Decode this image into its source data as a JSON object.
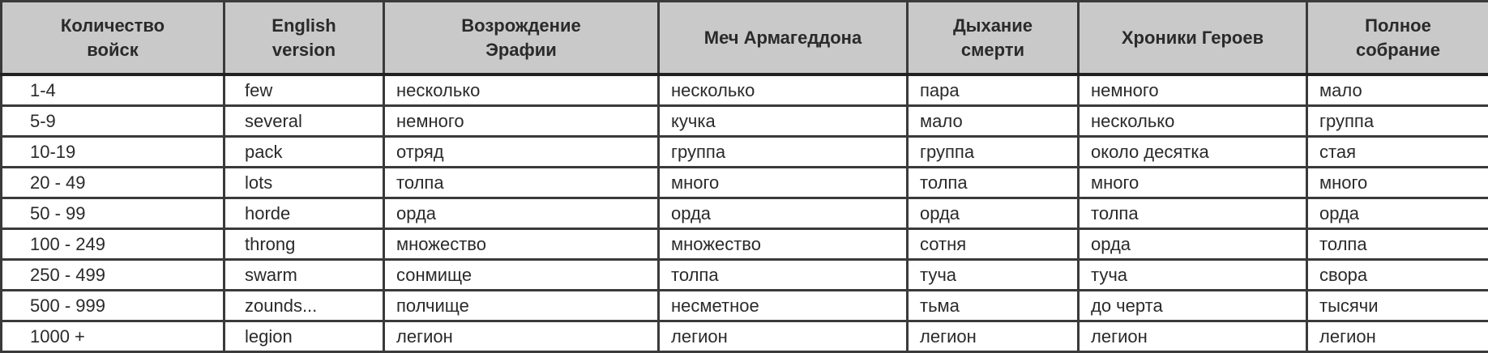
{
  "headers": [
    "Количество\nвойск",
    "English\nversion",
    "Возрождение\nЭрафии",
    "Меч Армагеддона",
    "Дыхание\nсмерти",
    "Хроники Героев",
    "Полное\nсобрание"
  ],
  "header_lines": [
    [
      "Количество",
      "войск"
    ],
    [
      "English",
      "version"
    ],
    [
      "Возрождение",
      "Эрафии"
    ],
    [
      "Меч Армагеддона"
    ],
    [
      "Дыхание",
      "смерти"
    ],
    [
      "Хроники Героев"
    ],
    [
      "Полное",
      "собрание"
    ]
  ],
  "rows": [
    [
      "1-4",
      "few",
      "несколько",
      "несколько",
      "пара",
      "немного",
      "мало"
    ],
    [
      "5-9",
      "several",
      "немного",
      "кучка",
      "мало",
      "несколько",
      "группа"
    ],
    [
      "10-19",
      "pack",
      "отряд",
      "группа",
      "группа",
      "около десятка",
      "стая"
    ],
    [
      "20 - 49",
      "lots",
      "толпа",
      "много",
      "толпа",
      "много",
      "много"
    ],
    [
      "50 - 99",
      "horde",
      "орда",
      "орда",
      "орда",
      "толпа",
      "орда"
    ],
    [
      "100 - 249",
      "throng",
      "множество",
      "множество",
      "сотня",
      "орда",
      "толпа"
    ],
    [
      "250 - 499",
      "swarm",
      "сонмище",
      "толпа",
      "туча",
      "туча",
      "свора"
    ],
    [
      "500 - 999",
      "zounds...",
      "полчище",
      "несметное",
      "тьма",
      "до черта",
      "тысячи"
    ],
    [
      "1000 +",
      "legion",
      "легион",
      "легион",
      "легион",
      "легион",
      "легион"
    ]
  ],
  "colors": {
    "header_bg": "#c9c9c9",
    "border": "#3a3a3a"
  }
}
